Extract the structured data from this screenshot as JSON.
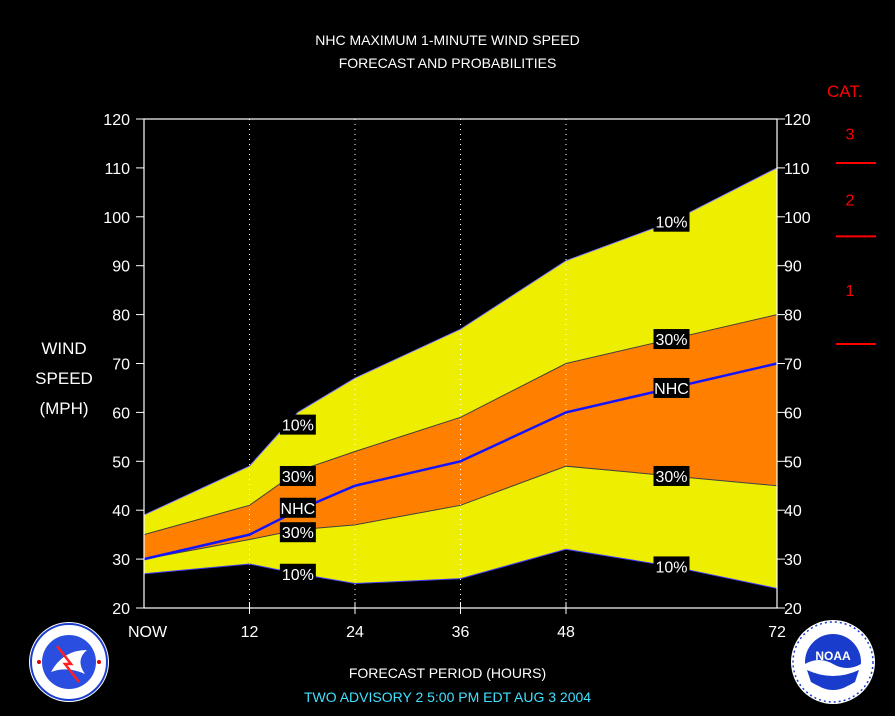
{
  "chart_data": {
    "type": "area",
    "title": "NHC MAXIMUM 1-MINUTE WIND SPEED",
    "subtitle": "FORECAST AND PROBABILITIES",
    "ylabel_lines": [
      "WIND",
      "SPEED",
      "(MPH)"
    ],
    "xlabel": "FORECAST PERIOD (HOURS)",
    "ylim": [
      20,
      120
    ],
    "yticks": [
      20,
      30,
      40,
      50,
      60,
      70,
      80,
      90,
      100,
      110,
      120
    ],
    "xlim": [
      0,
      72
    ],
    "xticks": [
      {
        "value": 0,
        "label": "NOW"
      },
      {
        "value": 12,
        "label": "12"
      },
      {
        "value": 24,
        "label": "24"
      },
      {
        "value": 36,
        "label": "36"
      },
      {
        "value": 48,
        "label": "48"
      },
      {
        "value": 72,
        "label": "72"
      }
    ],
    "x": [
      0,
      12,
      17.5,
      24,
      36,
      48,
      60,
      72
    ],
    "series": [
      {
        "name": "10%",
        "values": [
          39,
          49,
          60,
          67,
          77,
          91,
          99,
          110
        ]
      },
      {
        "name": "30%",
        "values": [
          35,
          41,
          48,
          52,
          59,
          70,
          75,
          80
        ]
      },
      {
        "name": "NHC",
        "values": [
          30,
          35,
          40,
          45,
          50,
          60,
          65,
          70
        ]
      },
      {
        "name": "30%",
        "values": [
          30,
          34,
          36,
          37,
          41,
          49,
          47,
          45
        ]
      },
      {
        "name": "10%",
        "values": [
          27,
          29,
          27,
          25,
          26,
          32,
          28.5,
          24
        ]
      }
    ],
    "band_labels": [
      {
        "text": "10%",
        "x": 17.5,
        "y": 57.5
      },
      {
        "text": "30%",
        "x": 17.5,
        "y": 47
      },
      {
        "text": "NHC",
        "x": 17.5,
        "y": 40.5
      },
      {
        "text": "30%",
        "x": 17.5,
        "y": 35.5
      },
      {
        "text": "10%",
        "x": 17.5,
        "y": 27
      },
      {
        "text": "10%",
        "x": 60,
        "y": 99
      },
      {
        "text": "30%",
        "x": 60,
        "y": 75
      },
      {
        "text": "NHC",
        "x": 60,
        "y": 65
      },
      {
        "text": "30%",
        "x": 60,
        "y": 47
      },
      {
        "text": "10%",
        "x": 60,
        "y": 28.5
      }
    ],
    "categories": [
      {
        "label": "3",
        "threshold": 111
      },
      {
        "label": "2",
        "threshold": 96
      },
      {
        "label": "1",
        "threshold": 74
      }
    ],
    "category_header": "CAT.",
    "colors": {
      "outer_band": "#eeee00",
      "inner_band": "#ff8000",
      "nhc_line": "#1414ff",
      "category": "#ff0000",
      "advisory": "#40e0ff"
    },
    "grid": "dotted vertical at 12, 24, 36, 48"
  },
  "footer": {
    "advisory": "TWO    ADVISORY  2  5:00  PM  EDT  AUG  3  2004"
  },
  "logos": {
    "left": "national-weather-service-logo",
    "right": "noaa-logo",
    "noaa_text": "NOAA"
  }
}
